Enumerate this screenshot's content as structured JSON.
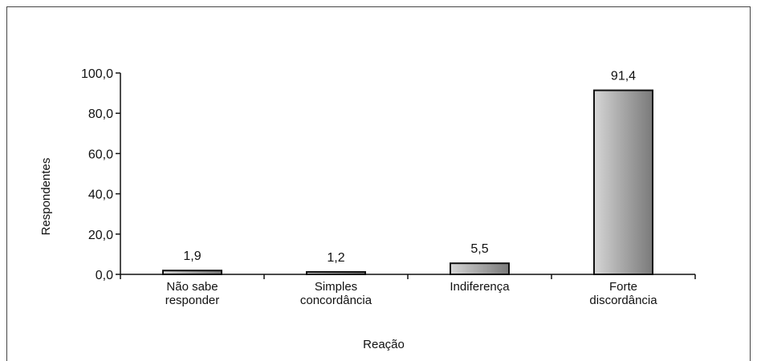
{
  "chart_data": {
    "type": "bar",
    "categories": [
      [
        "Não sabe",
        "responder"
      ],
      [
        "Simples",
        "concordância"
      ],
      [
        "Indiferença"
      ],
      [
        "Forte",
        "discordância"
      ]
    ],
    "values": [
      1.9,
      1.2,
      5.5,
      91.4
    ],
    "data_labels": [
      "1,9",
      "1,2",
      "5,5",
      "91,4"
    ],
    "xlabel": "Reação",
    "ylabel": "Respondentes",
    "ylim": [
      0,
      100
    ],
    "yticks": [
      0,
      20,
      40,
      60,
      80,
      100
    ],
    "ytick_labels": [
      "0,0",
      "20,0",
      "40,0",
      "60,0",
      "80,0",
      "100,0"
    ],
    "grid": false,
    "legend": "none",
    "bar_color": "#9a9a9a",
    "bar_edge_color": "#111111"
  }
}
